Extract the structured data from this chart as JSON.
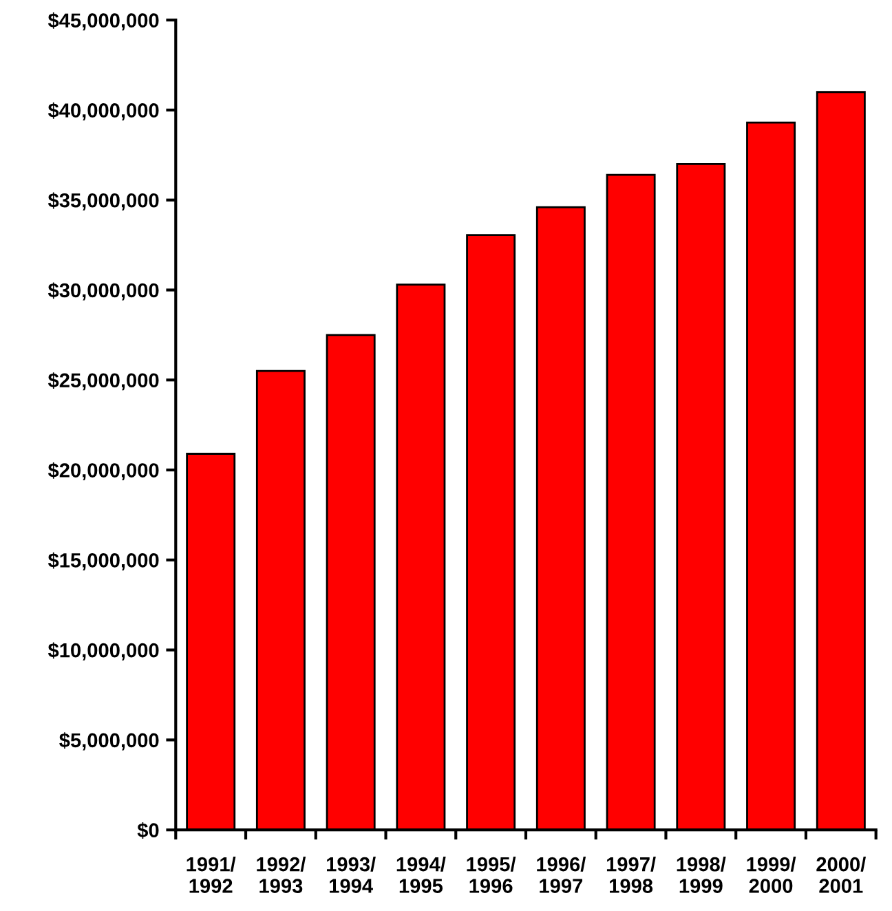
{
  "chart_data": {
    "type": "bar",
    "categories": [
      "1991/\n1992",
      "1992/\n1993",
      "1993/\n1994",
      "1994/\n1995",
      "1995/\n1996",
      "1996/\n1997",
      "1997/\n1998",
      "1998/\n1999",
      "1999/\n2000",
      "2000/\n2001"
    ],
    "values": [
      20900000,
      25500000,
      27500000,
      30300000,
      33050000,
      34600000,
      36400000,
      37000000,
      39300000,
      41000000
    ],
    "color": "#ff0000",
    "ylim": [
      0,
      45000000
    ],
    "yticks": [
      {
        "value": 0,
        "label": "$0"
      },
      {
        "value": 5000000,
        "label": "$5,000,000"
      },
      {
        "value": 10000000,
        "label": "$10,000,000"
      },
      {
        "value": 15000000,
        "label": "$15,000,000"
      },
      {
        "value": 20000000,
        "label": "$20,000,000"
      },
      {
        "value": 25000000,
        "label": "$25,000,000"
      },
      {
        "value": 30000000,
        "label": "$30,000,000"
      },
      {
        "value": 35000000,
        "label": "$35,000,000"
      },
      {
        "value": 40000000,
        "label": "$40,000,000"
      },
      {
        "value": 45000000,
        "label": "$45,000,000"
      }
    ],
    "grid": false
  }
}
